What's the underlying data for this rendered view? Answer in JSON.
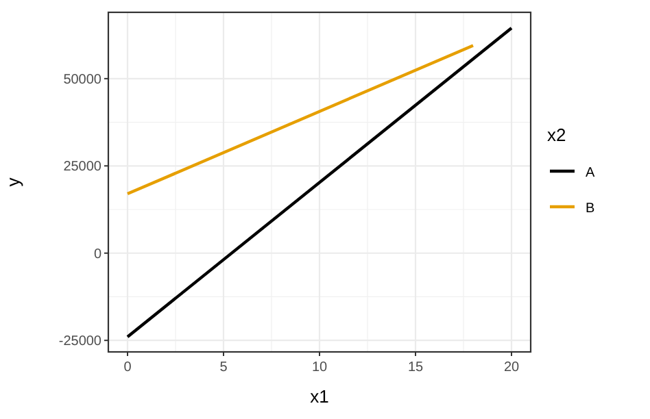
{
  "chart_data": {
    "type": "line",
    "xlabel": "x1",
    "ylabel": "y",
    "legend_title": "x2",
    "xlim": [
      -1,
      21
    ],
    "xticks": [
      0,
      5,
      10,
      15,
      20
    ],
    "ylim": [
      -28300,
      69000
    ],
    "yticks": [
      -25000,
      0,
      25000,
      50000
    ],
    "grid": true,
    "legend": "right",
    "line_style": "solid",
    "series": [
      {
        "name": "A",
        "color": "#000000",
        "x": [
          0,
          20
        ],
        "values": [
          -24000,
          64500
        ]
      },
      {
        "name": "B",
        "color": "#e69f00",
        "x": [
          0,
          18
        ],
        "values": [
          17000,
          59500
        ]
      }
    ]
  }
}
